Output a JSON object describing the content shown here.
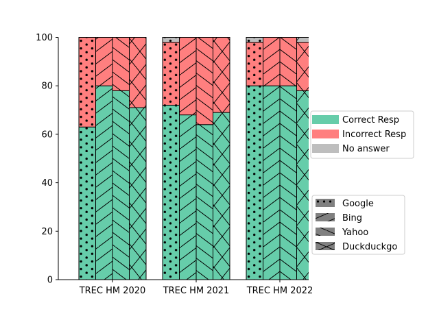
{
  "chart_data": {
    "type": "bar",
    "stacked": true,
    "title": "",
    "xlabel": "",
    "ylabel": "",
    "ylim": [
      0,
      100
    ],
    "yticks": [
      0,
      20,
      40,
      60,
      80,
      100
    ],
    "grid": false,
    "groups": [
      "TREC HM 2020",
      "TREC HM 2021",
      "TREC HM 2022"
    ],
    "engines": [
      "Google",
      "Bing",
      "Yahoo",
      "Duckduckgo"
    ],
    "engine_hatches": [
      "dots",
      "slash",
      "backslash",
      "cross"
    ],
    "response_types": [
      {
        "name": "Correct Resp",
        "color": "#66cdaa"
      },
      {
        "name": "Incorrect Resp",
        "color": "#ff7f7f"
      },
      {
        "name": "No answer",
        "color": "#bebebe"
      }
    ],
    "series": [
      {
        "name": "Correct Resp",
        "values": [
          [
            63,
            80,
            78,
            71
          ],
          [
            72,
            68,
            64,
            69
          ],
          [
            80,
            80,
            80,
            78
          ]
        ]
      },
      {
        "name": "Incorrect Resp",
        "values": [
          [
            37,
            20,
            22,
            29
          ],
          [
            26,
            32,
            36,
            31
          ],
          [
            18,
            20,
            20,
            20
          ]
        ]
      },
      {
        "name": "No answer",
        "values": [
          [
            0,
            0,
            0,
            0
          ],
          [
            2,
            0,
            0,
            0
          ],
          [
            2,
            0,
            0,
            2
          ]
        ]
      }
    ],
    "legend_placement": "right"
  }
}
